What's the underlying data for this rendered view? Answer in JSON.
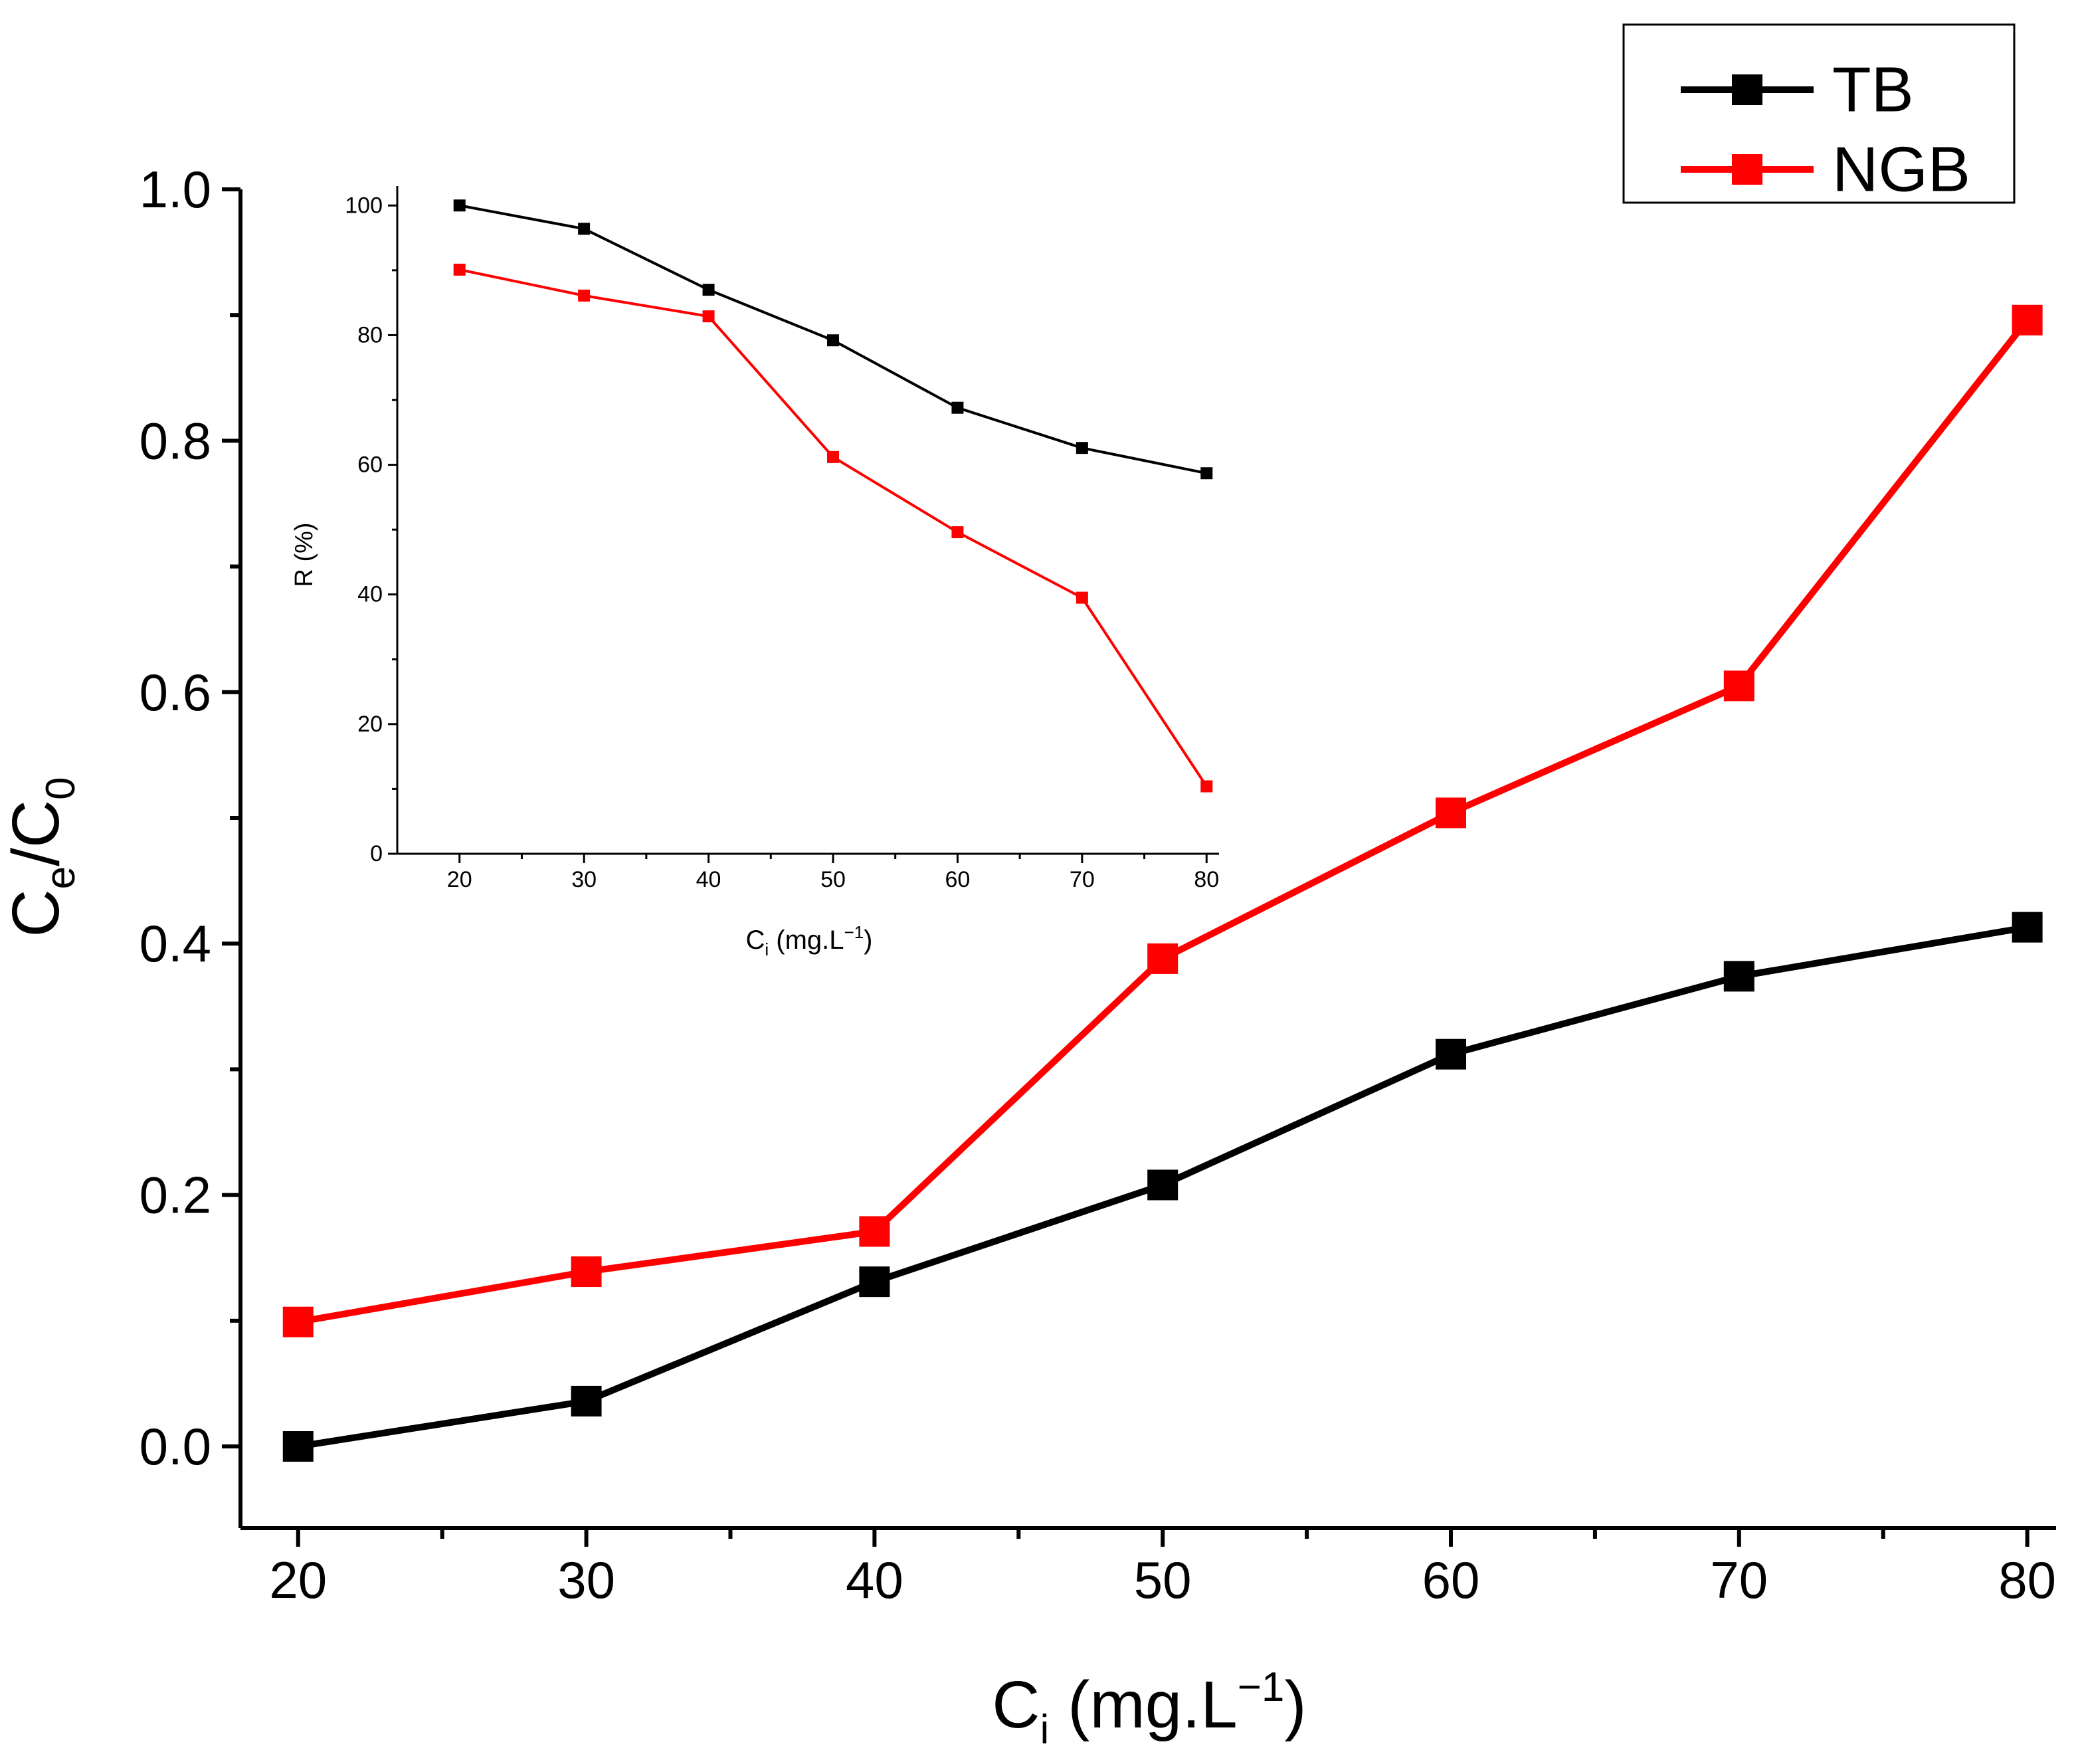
{
  "chart_data": [
    {
      "id": "main",
      "type": "line",
      "xlabel": {
        "base": "C",
        "sub": "i",
        "text": " (mg.L",
        "sup": "−1",
        "close": ")"
      },
      "ylabel": {
        "base1": "C",
        "sub1": "e",
        "slash": "/C",
        "sub2": "0"
      },
      "xlim": [
        18,
        81
      ],
      "ylim": [
        -0.065,
        1.0
      ],
      "xticks": [
        20,
        30,
        40,
        50,
        60,
        70,
        80
      ],
      "xtick_labels": [
        "20",
        "30",
        "40",
        "50",
        "60",
        "70",
        "80"
      ],
      "yticks": [
        0.0,
        0.2,
        0.4,
        0.6,
        0.8,
        1.0
      ],
      "ytick_labels": [
        "0.0",
        "0.2",
        "0.4",
        "0.6",
        "0.8",
        "1.0"
      ],
      "x": [
        20,
        30,
        40,
        50,
        60,
        70,
        80
      ],
      "series": [
        {
          "name": "TB",
          "color": "#000000",
          "values": [
            0.0,
            0.036,
            0.131,
            0.208,
            0.312,
            0.374,
            0.413
          ]
        },
        {
          "name": "NGB",
          "color": "#ff0000",
          "values": [
            0.099,
            0.139,
            0.171,
            0.388,
            0.504,
            0.605,
            0.896
          ]
        }
      ],
      "legend": {
        "position": "top-right",
        "entries": [
          "TB",
          "NGB"
        ]
      }
    },
    {
      "id": "inset",
      "type": "line",
      "xlabel": {
        "base": "C",
        "sub": "i",
        "text": " (mg.L",
        "sup": "−1",
        "close": ")"
      },
      "ylabel": "R (%)",
      "xlim": [
        15,
        81
      ],
      "ylim": [
        0,
        103
      ],
      "xticks": [
        20,
        30,
        40,
        50,
        60,
        70,
        80
      ],
      "xtick_labels": [
        "20",
        "30",
        "40",
        "50",
        "60",
        "70",
        "80"
      ],
      "yticks": [
        0,
        20,
        40,
        60,
        80,
        100
      ],
      "ytick_labels": [
        "0",
        "20",
        "40",
        "60",
        "80",
        "100"
      ],
      "x": [
        20,
        30,
        40,
        50,
        60,
        70,
        80
      ],
      "series": [
        {
          "name": "TB",
          "color": "#000000",
          "values": [
            100,
            96.4,
            87,
            79.2,
            68.8,
            62.6,
            58.7
          ]
        },
        {
          "name": "NGB",
          "color": "#ff0000",
          "values": [
            90.1,
            86.1,
            82.9,
            61.2,
            49.6,
            39.5,
            10.4
          ]
        }
      ]
    }
  ]
}
